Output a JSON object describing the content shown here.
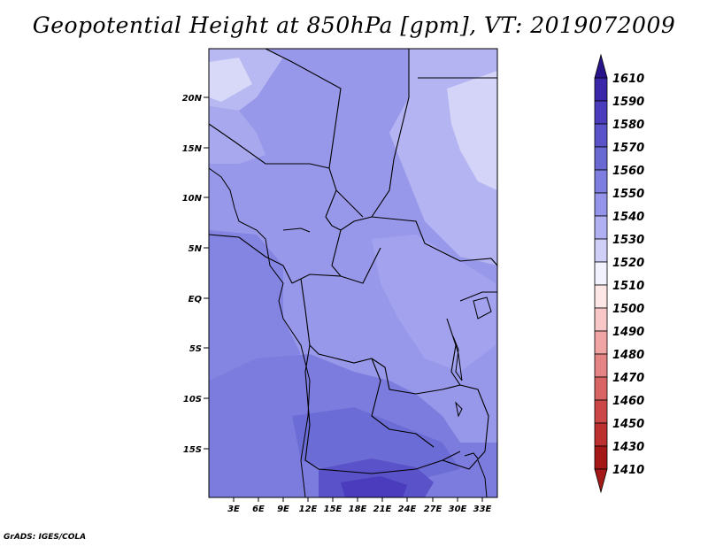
{
  "title": "Geopotential Height at 850hPa [gpm], VT: 2019072009",
  "credit": "GrADS: IGES/COLA",
  "map": {
    "lat_labels": [
      "20N",
      "15N",
      "10N",
      "5N",
      "EQ",
      "5S",
      "10S",
      "15S"
    ],
    "lon_labels": [
      "3E",
      "6E",
      "9E",
      "12E",
      "15E",
      "18E",
      "21E",
      "24E",
      "27E",
      "30E",
      "33E"
    ]
  },
  "colorbar": {
    "levels": [
      "1610",
      "1590",
      "1580",
      "1570",
      "1560",
      "1550",
      "1540",
      "1530",
      "1520",
      "1510",
      "1500",
      "1490",
      "1480",
      "1470",
      "1460",
      "1450",
      "1430",
      "1410"
    ],
    "colors": [
      "#2a148c",
      "#3a26a8",
      "#4a3cbc",
      "#5a52c8",
      "#6a68d2",
      "#7e7ee0",
      "#9494ea",
      "#b0b0f2",
      "#cfcff8",
      "#f2f2ff",
      "#fde6e6",
      "#f8c8c8",
      "#f0a4a4",
      "#e48484",
      "#d86464",
      "#cc4848",
      "#bc3030",
      "#a41818"
    ]
  }
}
